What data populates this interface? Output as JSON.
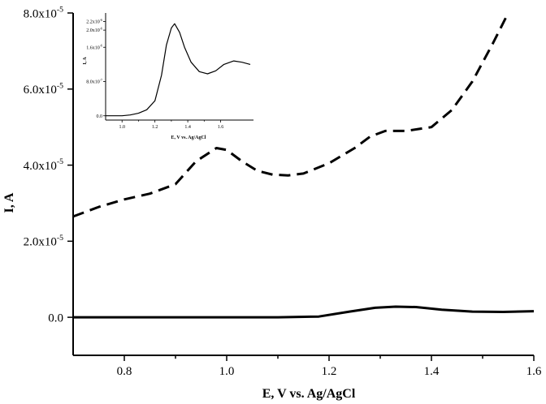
{
  "chart_data": [
    {
      "type": "line",
      "title": "",
      "xlabel": "E, V vs. Ag/AgCl",
      "ylabel": "I, A",
      "xlim": [
        0.7,
        1.6
      ],
      "ylim": [
        -1e-05,
        8e-05
      ],
      "xticks": [
        {
          "value": 0.8,
          "label": "0.8"
        },
        {
          "value": 1.0,
          "label": "1.0"
        },
        {
          "value": 1.2,
          "label": "1.2"
        },
        {
          "value": 1.4,
          "label": "1.4"
        },
        {
          "value": 1.6,
          "label": "1.6"
        }
      ],
      "yticks": [
        {
          "value": 0,
          "mantissa": "0.0",
          "exp": ""
        },
        {
          "value": 2e-05,
          "mantissa": "2.0x10",
          "exp": "-5"
        },
        {
          "value": 4e-05,
          "mantissa": "4.0x10",
          "exp": "-5"
        },
        {
          "value": 6e-05,
          "mantissa": "6.0x10",
          "exp": "-5"
        },
        {
          "value": 8e-05,
          "mantissa": "8.0x10",
          "exp": "-5"
        }
      ],
      "grid": false,
      "legend": "none",
      "series": [
        {
          "style": "dashed",
          "color": "#000000",
          "points": [
            [
              0.7,
              2.65e-05
            ],
            [
              0.75,
              2.9e-05
            ],
            [
              0.8,
              3.1e-05
            ],
            [
              0.85,
              3.25e-05
            ],
            [
              0.9,
              3.5e-05
            ],
            [
              0.94,
              4.1e-05
            ],
            [
              0.98,
              4.45e-05
            ],
            [
              1.0,
              4.4e-05
            ],
            [
              1.03,
              4.1e-05
            ],
            [
              1.06,
              3.85e-05
            ],
            [
              1.09,
              3.75e-05
            ],
            [
              1.12,
              3.73e-05
            ],
            [
              1.15,
              3.78e-05
            ],
            [
              1.2,
              4.05e-05
            ],
            [
              1.25,
              4.45e-05
            ],
            [
              1.28,
              4.75e-05
            ],
            [
              1.31,
              4.9e-05
            ],
            [
              1.35,
              4.9e-05
            ],
            [
              1.4,
              5e-05
            ],
            [
              1.44,
              5.45e-05
            ],
            [
              1.48,
              6.2e-05
            ],
            [
              1.52,
              7.2e-05
            ],
            [
              1.55,
              8e-05
            ]
          ]
        },
        {
          "style": "solid",
          "color": "#000000",
          "points": [
            [
              0.7,
              0.0
            ],
            [
              0.8,
              0.0
            ],
            [
              0.9,
              0.0
            ],
            [
              1.0,
              0.0
            ],
            [
              1.1,
              0.0
            ],
            [
              1.18,
              2e-07
            ],
            [
              1.24,
              1.5e-06
            ],
            [
              1.29,
              2.5e-06
            ],
            [
              1.33,
              2.8e-06
            ],
            [
              1.37,
              2.7e-06
            ],
            [
              1.42,
              2e-06
            ],
            [
              1.48,
              1.5e-06
            ],
            [
              1.54,
              1.4e-06
            ],
            [
              1.6,
              1.6e-06
            ]
          ]
        }
      ]
    },
    {
      "type": "line",
      "title": "",
      "xlabel": "E, V vs. Ag/AgCl",
      "ylabel": "I, A",
      "xlim": [
        0.9,
        1.8
      ],
      "ylim": [
        -1e-07,
        2.4e-06
      ],
      "xticks": [
        {
          "value": 1.0,
          "label": "1.0"
        },
        {
          "value": 1.2,
          "label": "1.2"
        },
        {
          "value": 1.4,
          "label": "1.4"
        },
        {
          "value": 1.6,
          "label": "1.6"
        }
      ],
      "yticks": [
        {
          "value": 0,
          "mantissa": "0.0",
          "exp": ""
        },
        {
          "value": 8e-07,
          "mantissa": "8.0x10",
          "exp": "-7"
        },
        {
          "value": 1.6e-06,
          "mantissa": "1.6x10",
          "exp": "-6"
        },
        {
          "value": 2e-06,
          "mantissa": "2.0x10",
          "exp": "-6"
        },
        {
          "value": 2.2e-06,
          "mantissa": "2.2x10",
          "exp": "-6"
        }
      ],
      "grid": false,
      "legend": "none",
      "series": [
        {
          "style": "solid",
          "color": "#000000",
          "points": [
            [
              0.9,
              0.0
            ],
            [
              1.0,
              0.0
            ],
            [
              1.05,
              2e-08
            ],
            [
              1.1,
              6e-08
            ],
            [
              1.15,
              1.4e-07
            ],
            [
              1.2,
              3.5e-07
            ],
            [
              1.24,
              9.5e-07
            ],
            [
              1.27,
              1.65e-06
            ],
            [
              1.3,
              2.05e-06
            ],
            [
              1.32,
              2.15e-06
            ],
            [
              1.35,
              1.95e-06
            ],
            [
              1.38,
              1.6e-06
            ],
            [
              1.42,
              1.25e-06
            ],
            [
              1.47,
              1.03e-06
            ],
            [
              1.52,
              9.8e-07
            ],
            [
              1.57,
              1.05e-06
            ],
            [
              1.62,
              1.2e-06
            ],
            [
              1.68,
              1.28e-06
            ],
            [
              1.73,
              1.25e-06
            ],
            [
              1.78,
              1.2e-06
            ]
          ]
        }
      ]
    }
  ]
}
